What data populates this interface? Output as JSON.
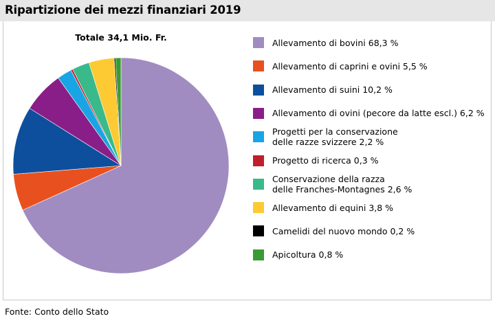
{
  "header": {
    "title": "Ripartizione dei mezzi finanziari 2019"
  },
  "footer": {
    "source": "Fonte: Conto dello Stato"
  },
  "chart_data": {
    "type": "pie",
    "title": "Totale 34,1 Mio. Fr.",
    "legend_position": "right",
    "slices": [
      {
        "lines": [
          "Allevamento di bovini 68,3 %"
        ],
        "value": 68.3,
        "color": "#a08cc0"
      },
      {
        "lines": [
          "Allevamento di caprini e ovini 5,5 %"
        ],
        "value": 5.5,
        "color": "#e9501f"
      },
      {
        "lines": [
          "Allevamento di suini 10,2 %"
        ],
        "value": 10.2,
        "color": "#0d4f9c"
      },
      {
        "lines": [
          "Allevamento di ovini (pecore da latte escl.) 6,2 %"
        ],
        "value": 6.2,
        "color": "#8a1e88"
      },
      {
        "lines": [
          "Progetti per la conservazione",
          "delle razze svizzere 2,2 %"
        ],
        "value": 2.2,
        "color": "#19a5e3"
      },
      {
        "lines": [
          "Progetto di ricerca 0,3 %"
        ],
        "value": 0.3,
        "color": "#be1f2b"
      },
      {
        "lines": [
          "Conservazione della razza",
          "delle Franches-Montagnes 2,6 %"
        ],
        "value": 2.6,
        "color": "#3ab98a"
      },
      {
        "lines": [
          "Allevamento di equini 3,8 %"
        ],
        "value": 3.8,
        "color": "#fdca33"
      },
      {
        "lines": [
          "Camelidi del nuovo mondo 0,2 %"
        ],
        "value": 0.2,
        "color": "#000000"
      },
      {
        "lines": [
          "Apicoltura 0,8 %"
        ],
        "value": 0.8,
        "color": "#3a9a35"
      }
    ]
  }
}
